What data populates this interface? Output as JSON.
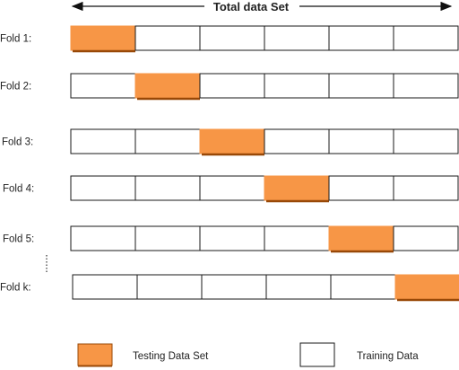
{
  "header": {
    "title": "Total data Set"
  },
  "folds": [
    {
      "label": "Fold 1:",
      "test_index": 0
    },
    {
      "label": "Fold 2:",
      "test_index": 1
    },
    {
      "label": "Fold 3:",
      "test_index": 2
    },
    {
      "label": "Fold 4:",
      "test_index": 3
    },
    {
      "label": "Fold 5:",
      "test_index": 4
    },
    {
      "label": "Fold k:",
      "test_index": 5
    }
  ],
  "cells_per_fold": 6,
  "legend": {
    "testing_label": "Testing Data Set",
    "training_label": "Training Data"
  },
  "colors": {
    "testing_fill": "#f79646",
    "testing_shadow": "#984807",
    "training_fill": "#ffffff",
    "border": "#1a1a1a"
  }
}
